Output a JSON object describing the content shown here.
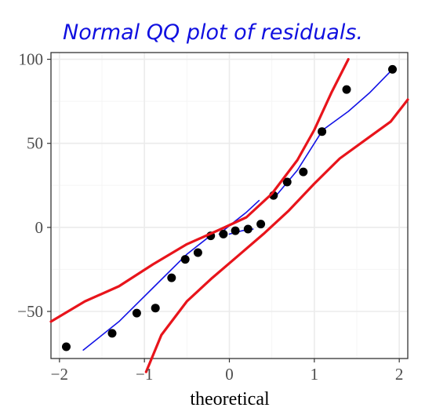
{
  "chart_data": {
    "type": "scatter",
    "title": "Normal QQ plot of residuals.",
    "xlabel": "theoretical",
    "ylabel": "",
    "xlim": [
      -2.1,
      2.1
    ],
    "ylim": [
      -78,
      104
    ],
    "x_ticks": [
      -2,
      -1,
      0,
      1,
      2
    ],
    "x_tick_labels": [
      "−2",
      "−1",
      "0",
      "1",
      "2"
    ],
    "y_ticks": [
      -50,
      0,
      50,
      100
    ],
    "y_tick_labels": [
      "−50",
      "0",
      "50",
      "100"
    ],
    "grid": true,
    "legend": "none",
    "colors": {
      "points": "#000000",
      "envelope": "#e8141b",
      "handwriting": "#1212e6",
      "panel_border": "#333333",
      "grid_major": "#ebebeb",
      "grid_minor": "#f5f5f5"
    },
    "points": {
      "x": [
        -1.92,
        -1.38,
        -1.09,
        -0.87,
        -0.68,
        -0.52,
        -0.37,
        -0.22,
        -0.07,
        0.07,
        0.22,
        0.37,
        0.52,
        0.68,
        0.87,
        1.09,
        1.38,
        1.92
      ],
      "y": [
        -71,
        -63,
        -51,
        -48,
        -30,
        -19,
        -15,
        -5,
        -4,
        -2,
        -1,
        2,
        19,
        27,
        33,
        57,
        82,
        94
      ]
    },
    "upper_envelope": {
      "x": [
        -2.1,
        -1.7,
        -1.3,
        -0.9,
        -0.5,
        -0.1,
        0.2,
        0.5,
        0.8,
        1.0,
        1.2,
        1.4
      ],
      "y": [
        -56,
        -44,
        -35,
        -22,
        -10,
        -1,
        6,
        20,
        40,
        58,
        80,
        100
      ]
    },
    "lower_envelope": {
      "x": [
        -0.98,
        -0.8,
        -0.5,
        -0.2,
        0.1,
        0.4,
        0.7,
        1.0,
        1.3,
        1.6,
        1.9,
        2.1
      ],
      "y": [
        -86,
        -64,
        -44,
        -30,
        -17,
        -4,
        10,
        26,
        41,
        52,
        63,
        76
      ]
    },
    "hand_reference_segments": [
      {
        "x": [
          -1.72,
          -1.3,
          -0.9,
          -0.5,
          -0.25
        ],
        "y": [
          -73,
          -56,
          -36,
          -16,
          -6
        ]
      },
      {
        "x": [
          -0.12,
          0.05,
          0.2,
          0.35
        ],
        "y": [
          -4,
          3,
          9,
          16
        ]
      },
      {
        "x": [
          0.0,
          0.15,
          0.28
        ],
        "y": [
          -4,
          -2,
          -1
        ]
      },
      {
        "x": [
          0.52,
          0.8,
          1.1,
          1.4,
          1.65,
          1.92
        ],
        "y": [
          17,
          34,
          58,
          69,
          80,
          94
        ]
      }
    ]
  }
}
